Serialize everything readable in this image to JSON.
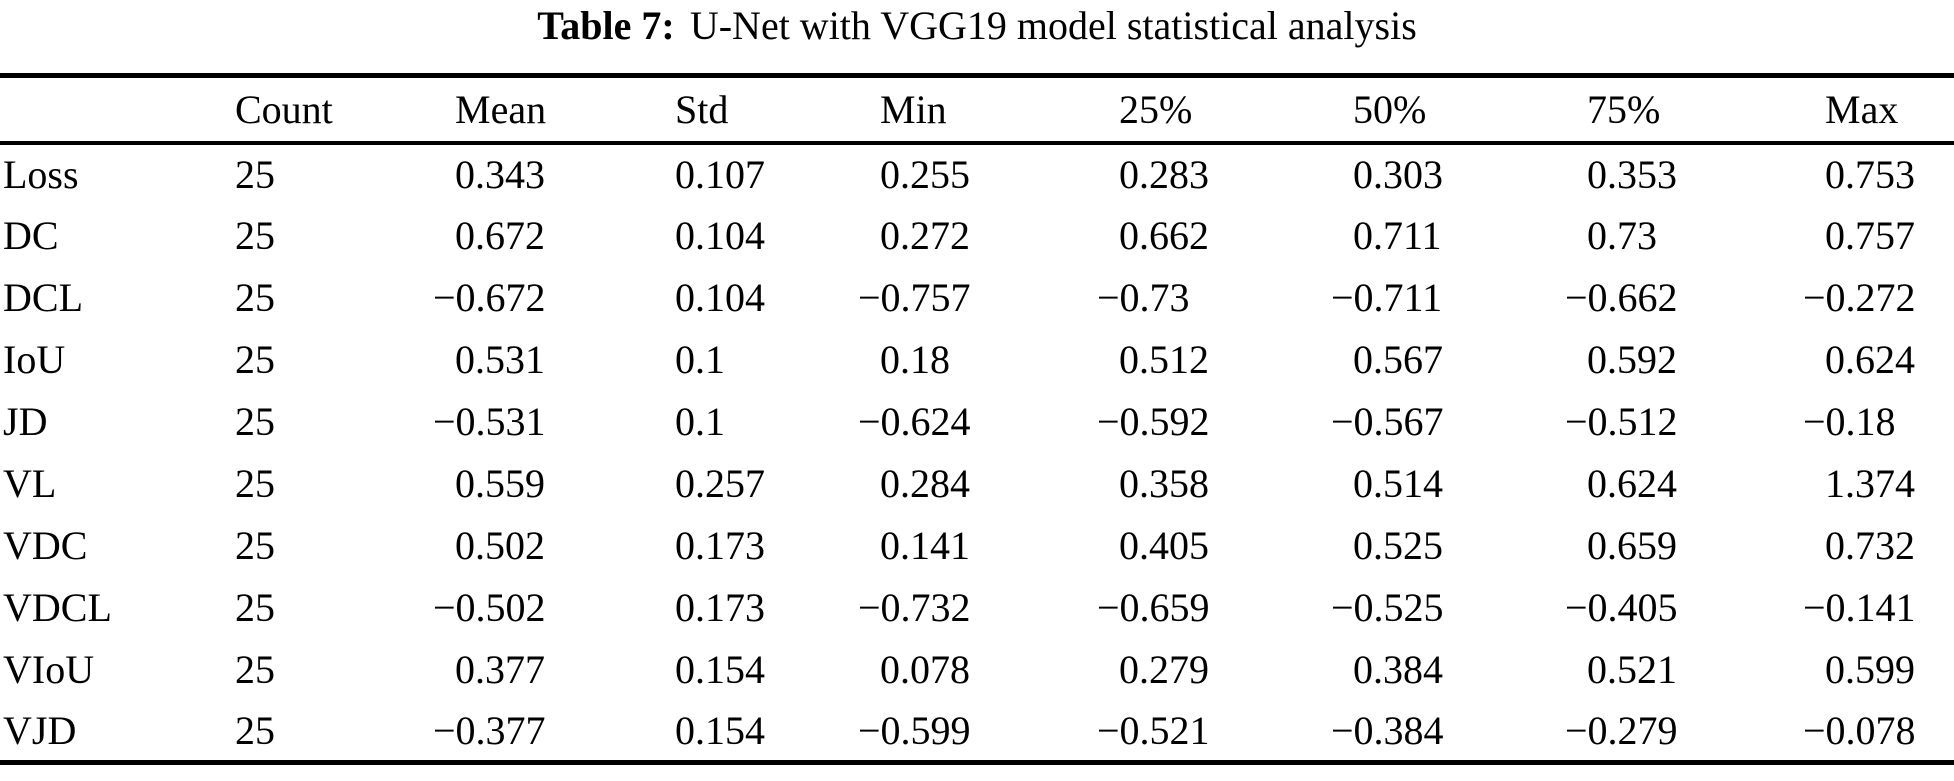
{
  "caption": {
    "label": "Table 7:",
    "text": "U-Net with VGG19 model statistical analysis"
  },
  "chart_data": {
    "type": "table",
    "title": "Table 7: U-Net with VGG19 model statistical analysis",
    "columns": [
      "",
      "Count",
      "Mean",
      "Std",
      "Min",
      "25%",
      "50%",
      "75%",
      "Max"
    ],
    "rows": [
      [
        "Loss",
        "25",
        "0.343",
        "0.107",
        "0.255",
        "0.283",
        "0.303",
        "0.353",
        "0.753"
      ],
      [
        "DC",
        "25",
        "0.672",
        "0.104",
        "0.272",
        "0.662",
        "0.711",
        "0.73",
        "0.757"
      ],
      [
        "DCL",
        "25",
        "−0.672",
        "0.104",
        "−0.757",
        "−0.73",
        "−0.711",
        "−0.662",
        "−0.272"
      ],
      [
        "IoU",
        "25",
        "0.531",
        "0.1",
        "0.18",
        "0.512",
        "0.567",
        "0.592",
        "0.624"
      ],
      [
        "JD",
        "25",
        "−0.531",
        "0.1",
        "−0.624",
        "−0.592",
        "−0.567",
        "−0.512",
        "−0.18"
      ],
      [
        "VL",
        "25",
        "0.559",
        "0.257",
        "0.284",
        "0.358",
        "0.514",
        "0.624",
        "1.374"
      ],
      [
        "VDC",
        "25",
        "0.502",
        "0.173",
        "0.141",
        "0.405",
        "0.525",
        "0.659",
        "0.732"
      ],
      [
        "VDCL",
        "25",
        "−0.502",
        "0.173",
        "−0.732",
        "−0.659",
        "−0.525",
        "−0.405",
        "−0.141"
      ],
      [
        "VIoU",
        "25",
        "0.377",
        "0.154",
        "0.078",
        "0.279",
        "0.384",
        "0.521",
        "0.599"
      ],
      [
        "VJD",
        "25",
        "−0.377",
        "0.154",
        "−0.599",
        "−0.521",
        "−0.384",
        "−0.279",
        "−0.078"
      ]
    ]
  },
  "colors": {
    "background": "#ffffff",
    "text": "#000000",
    "rule": "#000000"
  }
}
